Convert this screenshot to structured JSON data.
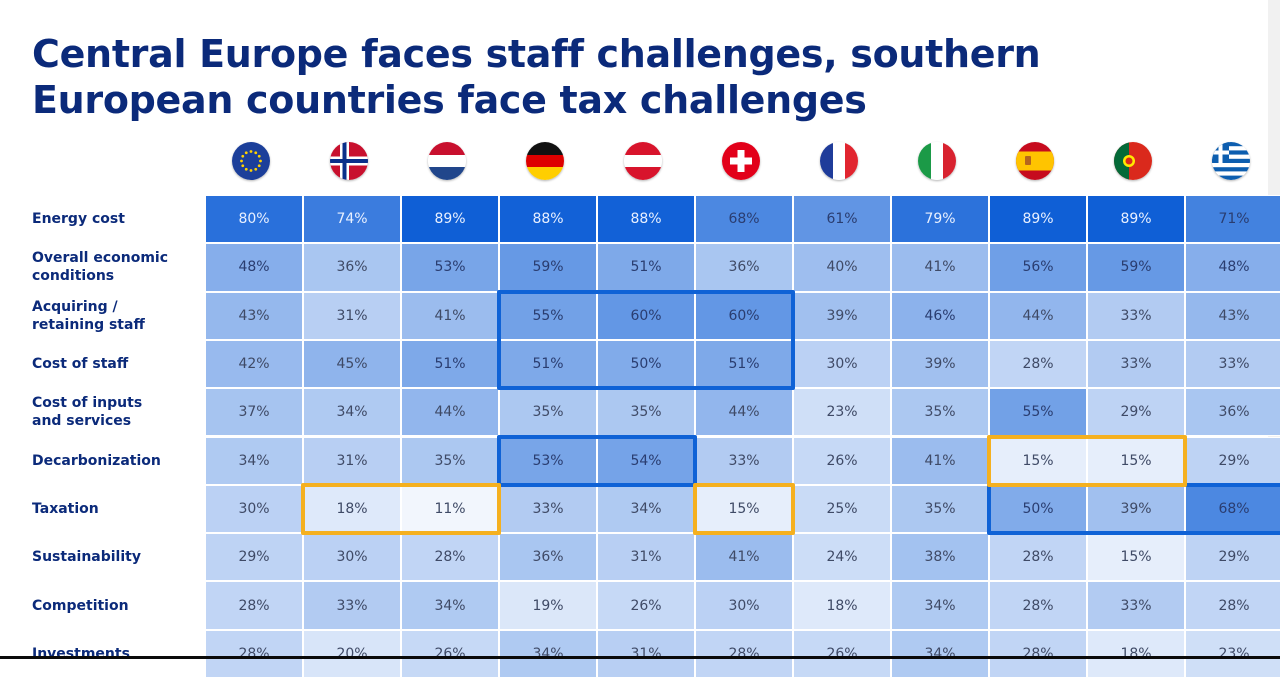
{
  "title_lines": [
    "Central Europe faces staff challenges, southern",
    "European countries face tax challenges"
  ],
  "chart_data": {
    "type": "heatmap",
    "columns": [
      "eu-flag",
      "norway-flag",
      "netherlands-flag",
      "germany-flag",
      "austria-flag",
      "switzerland-flag",
      "france-flag",
      "italy-flag",
      "spain-flag",
      "portugal-flag",
      "greece-flag"
    ],
    "rows": [
      {
        "label": [
          "Energy cost"
        ],
        "values": [
          80,
          74,
          89,
          88,
          88,
          68,
          61,
          79,
          89,
          89,
          71
        ]
      },
      {
        "label": [
          "Overall economic",
          "conditions"
        ],
        "values": [
          48,
          36,
          53,
          59,
          51,
          36,
          40,
          41,
          56,
          59,
          48
        ]
      },
      {
        "label": [
          "Acquiring /",
          "retaining staff"
        ],
        "values": [
          43,
          31,
          41,
          55,
          60,
          60,
          39,
          46,
          44,
          33,
          43
        ]
      },
      {
        "label": [
          "Cost of staff"
        ],
        "values": [
          42,
          45,
          51,
          51,
          50,
          51,
          30,
          39,
          28,
          33,
          33
        ]
      },
      {
        "label": [
          "Cost of inputs",
          "and services"
        ],
        "values": [
          37,
          34,
          44,
          35,
          35,
          44,
          23,
          35,
          55,
          29,
          36
        ]
      },
      {
        "label": [
          "Decarbonization"
        ],
        "values": [
          34,
          31,
          35,
          53,
          54,
          33,
          26,
          41,
          15,
          15,
          29
        ]
      },
      {
        "label": [
          "Taxation"
        ],
        "values": [
          30,
          18,
          11,
          33,
          34,
          15,
          25,
          35,
          50,
          39,
          68
        ]
      },
      {
        "label": [
          "Sustainability"
        ],
        "values": [
          29,
          30,
          28,
          36,
          31,
          41,
          24,
          38,
          28,
          15,
          29
        ]
      },
      {
        "label": [
          "Competition"
        ],
        "values": [
          28,
          33,
          34,
          19,
          26,
          30,
          18,
          34,
          28,
          33,
          28
        ]
      },
      {
        "label": [
          "Investments"
        ],
        "values": [
          28,
          20,
          26,
          34,
          31,
          28,
          26,
          34,
          28,
          18,
          23
        ]
      }
    ],
    "value_suffix": "%",
    "colors": {
      "low": "#f5f8fe",
      "high": "#0f5fd6"
    },
    "highlights": [
      {
        "color": "blue",
        "rows": [
          2,
          3
        ],
        "cols": [
          3,
          5
        ]
      },
      {
        "color": "blue",
        "rows": [
          5,
          5
        ],
        "cols": [
          3,
          4
        ]
      },
      {
        "color": "blue",
        "rows": [
          6,
          6
        ],
        "cols": [
          8,
          10
        ]
      },
      {
        "color": "orange",
        "rows": [
          6,
          6
        ],
        "cols": [
          1,
          2
        ]
      },
      {
        "color": "orange",
        "rows": [
          6,
          6
        ],
        "cols": [
          5,
          5
        ]
      },
      {
        "color": "orange",
        "rows": [
          5,
          5
        ],
        "cols": [
          8,
          9
        ]
      }
    ]
  }
}
